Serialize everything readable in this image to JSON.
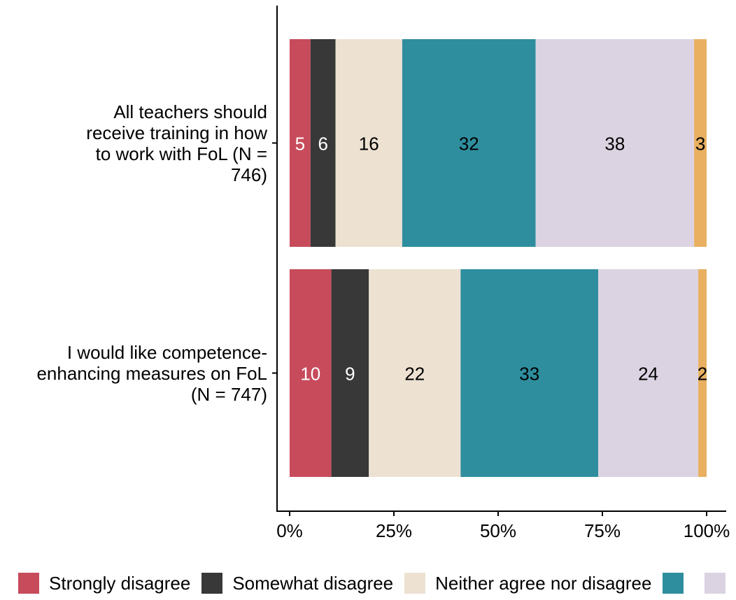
{
  "chart_data": {
    "type": "bar",
    "orientation": "horizontal",
    "stacked": true,
    "percent_scale": true,
    "categories": [
      "All teachers should receive training in how to work with FoL (N = 746)",
      "I would like competence-enhancing measures on FoL (N = 747)"
    ],
    "category_lines": [
      [
        "All teachers should",
        "receive training in how",
        "to work with FoL (N =",
        "746)"
      ],
      [
        "I would like competence-",
        "enhancing measures on FoL",
        "(N = 747)"
      ]
    ],
    "series": [
      {
        "name": "Strongly disagree",
        "color": "#c74b5b",
        "label_color": "#ffffff",
        "values": [
          5,
          10
        ]
      },
      {
        "name": "Somewhat disagree",
        "color": "#383838",
        "label_color": "#ffffff",
        "values": [
          6,
          9
        ]
      },
      {
        "name": "Neither agree nor disagree",
        "color": "#ede1d2",
        "label_color": "#000000",
        "values": [
          16,
          22
        ]
      },
      {
        "name": "",
        "color": "#2e8e9e",
        "label_color": "#000000",
        "values": [
          32,
          33
        ]
      },
      {
        "name": "",
        "color": "#dbd3e1",
        "label_color": "#000000",
        "values": [
          38,
          24
        ]
      },
      {
        "name": "",
        "color": "#e8b060",
        "label_color": "#000000",
        "values": [
          3,
          2
        ]
      }
    ],
    "xlim": [
      0,
      100
    ],
    "xticks": [
      0,
      25,
      50,
      75,
      100
    ],
    "xtick_labels": [
      "0%",
      "25%",
      "50%",
      "75%",
      "100%"
    ],
    "title": "",
    "xlabel": "",
    "ylabel": "",
    "grid": false,
    "legend": "bottom"
  }
}
